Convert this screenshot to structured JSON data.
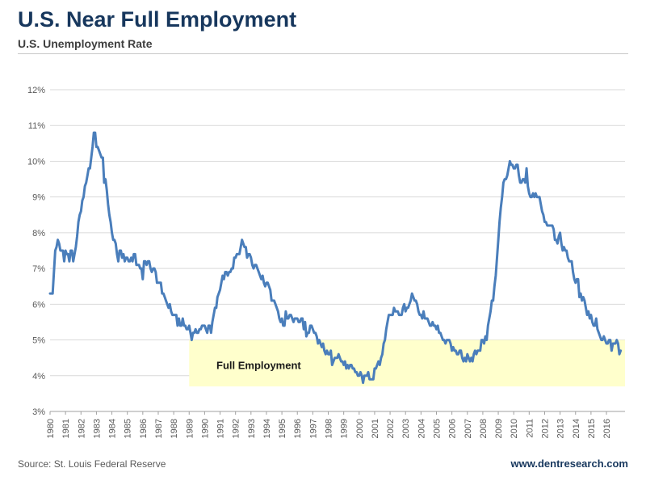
{
  "page": {
    "title": "U.S. Near Full Employment",
    "subtitle": "U.S. Unemployment Rate",
    "source": "Source: St. Louis Federal Reserve",
    "website": "www.dentresearch.com"
  },
  "colors": {
    "title": "#17375d",
    "line": "#4a7ebb",
    "band_fill": "#ffffcc",
    "band_label": "#1a1a1a",
    "grid": "#d9d9d9",
    "axis": "#a0a0a0",
    "axis_text": "#595959"
  },
  "chart_data": {
    "type": "line",
    "title": "U.S. Unemployment Rate",
    "xlabel": "",
    "ylabel": "",
    "ylim": [
      3,
      12
    ],
    "xlim": [
      1980,
      2017.2
    ],
    "grid": true,
    "legend": false,
    "y_ticks": [
      3,
      4,
      5,
      6,
      7,
      8,
      9,
      10,
      11,
      12
    ],
    "y_tick_suffix": "%",
    "x_ticks": [
      1980,
      1981,
      1982,
      1983,
      1984,
      1985,
      1986,
      1987,
      1988,
      1989,
      1990,
      1991,
      1992,
      1993,
      1994,
      1995,
      1996,
      1997,
      1998,
      1999,
      2000,
      2001,
      2002,
      2003,
      2004,
      2005,
      2006,
      2007,
      2008,
      2009,
      2010,
      2011,
      2012,
      2013,
      2014,
      2015,
      2016
    ],
    "series": [
      {
        "name": "U.S. Unemployment Rate",
        "color": "#4a7ebb",
        "frequency": "monthly",
        "x_start": 1980,
        "values": [
          6.3,
          6.3,
          6.3,
          6.9,
          7.5,
          7.6,
          7.8,
          7.7,
          7.5,
          7.5,
          7.5,
          7.2,
          7.5,
          7.4,
          7.4,
          7.2,
          7.5,
          7.5,
          7.2,
          7.4,
          7.6,
          7.9,
          8.3,
          8.5,
          8.6,
          8.9,
          9.0,
          9.3,
          9.4,
          9.6,
          9.8,
          9.8,
          10.1,
          10.4,
          10.8,
          10.8,
          10.4,
          10.4,
          10.3,
          10.2,
          10.1,
          10.1,
          9.4,
          9.5,
          9.2,
          8.8,
          8.5,
          8.3,
          8.0,
          7.8,
          7.8,
          7.7,
          7.4,
          7.2,
          7.5,
          7.5,
          7.3,
          7.4,
          7.2,
          7.3,
          7.3,
          7.2,
          7.2,
          7.3,
          7.2,
          7.4,
          7.4,
          7.1,
          7.1,
          7.1,
          7.0,
          7.0,
          6.7,
          7.2,
          7.2,
          7.1,
          7.2,
          7.2,
          7.0,
          6.9,
          7.0,
          7.0,
          6.9,
          6.6,
          6.6,
          6.6,
          6.6,
          6.3,
          6.3,
          6.2,
          6.1,
          6.0,
          5.9,
          6.0,
          5.8,
          5.7,
          5.7,
          5.7,
          5.7,
          5.4,
          5.6,
          5.4,
          5.4,
          5.6,
          5.4,
          5.4,
          5.3,
          5.3,
          5.4,
          5.2,
          5.0,
          5.2,
          5.2,
          5.3,
          5.2,
          5.2,
          5.3,
          5.3,
          5.4,
          5.4,
          5.4,
          5.3,
          5.2,
          5.4,
          5.4,
          5.2,
          5.5,
          5.7,
          5.9,
          5.9,
          6.2,
          6.3,
          6.4,
          6.6,
          6.8,
          6.7,
          6.9,
          6.9,
          6.8,
          6.9,
          6.9,
          7.0,
          7.0,
          7.3,
          7.3,
          7.4,
          7.4,
          7.4,
          7.6,
          7.8,
          7.7,
          7.6,
          7.6,
          7.3,
          7.4,
          7.4,
          7.3,
          7.1,
          7.0,
          7.1,
          7.1,
          7.0,
          6.9,
          6.8,
          6.7,
          6.8,
          6.6,
          6.5,
          6.6,
          6.6,
          6.5,
          6.4,
          6.1,
          6.1,
          6.1,
          6.0,
          5.9,
          5.8,
          5.6,
          5.5,
          5.6,
          5.4,
          5.4,
          5.8,
          5.6,
          5.6,
          5.7,
          5.7,
          5.6,
          5.5,
          5.6,
          5.6,
          5.6,
          5.5,
          5.5,
          5.6,
          5.6,
          5.3,
          5.5,
          5.1,
          5.2,
          5.2,
          5.4,
          5.4,
          5.3,
          5.2,
          5.2,
          5.1,
          4.9,
          5.0,
          4.9,
          4.8,
          4.9,
          4.7,
          4.6,
          4.7,
          4.6,
          4.6,
          4.7,
          4.3,
          4.4,
          4.5,
          4.5,
          4.5,
          4.6,
          4.5,
          4.4,
          4.4,
          4.3,
          4.4,
          4.2,
          4.3,
          4.2,
          4.3,
          4.3,
          4.2,
          4.2,
          4.1,
          4.1,
          4.0,
          4.0,
          4.1,
          4.0,
          3.8,
          4.0,
          4.0,
          4.0,
          4.1,
          3.9,
          3.9,
          3.9,
          3.9,
          4.2,
          4.2,
          4.3,
          4.4,
          4.3,
          4.5,
          4.6,
          4.9,
          5.0,
          5.3,
          5.5,
          5.7,
          5.7,
          5.7,
          5.7,
          5.9,
          5.8,
          5.8,
          5.8,
          5.7,
          5.7,
          5.7,
          5.9,
          6.0,
          5.8,
          5.9,
          5.9,
          6.0,
          6.1,
          6.3,
          6.2,
          6.1,
          6.1,
          6.0,
          5.8,
          5.7,
          5.7,
          5.6,
          5.8,
          5.6,
          5.6,
          5.6,
          5.5,
          5.4,
          5.4,
          5.5,
          5.4,
          5.4,
          5.3,
          5.4,
          5.2,
          5.2,
          5.1,
          5.0,
          5.0,
          4.9,
          5.0,
          5.0,
          5.0,
          4.9,
          4.7,
          4.8,
          4.7,
          4.7,
          4.6,
          4.6,
          4.7,
          4.7,
          4.5,
          4.4,
          4.5,
          4.4,
          4.6,
          4.5,
          4.4,
          4.5,
          4.4,
          4.6,
          4.7,
          4.6,
          4.7,
          4.7,
          4.7,
          5.0,
          5.0,
          4.9,
          5.1,
          5.0,
          5.4,
          5.6,
          5.8,
          6.1,
          6.1,
          6.5,
          6.8,
          7.3,
          7.8,
          8.3,
          8.7,
          9.0,
          9.4,
          9.5,
          9.5,
          9.6,
          9.8,
          10.0,
          9.9,
          9.9,
          9.8,
          9.8,
          9.9,
          9.9,
          9.6,
          9.4,
          9.4,
          9.5,
          9.5,
          9.4,
          9.8,
          9.3,
          9.1,
          9.0,
          9.0,
          9.1,
          9.0,
          9.1,
          9.0,
          9.0,
          9.0,
          8.8,
          8.6,
          8.5,
          8.3,
          8.3,
          8.2,
          8.2,
          8.2,
          8.2,
          8.2,
          8.1,
          7.8,
          7.8,
          7.7,
          7.9,
          8.0,
          7.7,
          7.5,
          7.6,
          7.5,
          7.5,
          7.3,
          7.2,
          7.2,
          7.2,
          6.9,
          6.7,
          6.6,
          6.7,
          6.7,
          6.2,
          6.3,
          6.1,
          6.2,
          6.1,
          5.9,
          5.7,
          5.8,
          5.6,
          5.7,
          5.5,
          5.4,
          5.4,
          5.6,
          5.3,
          5.2,
          5.1,
          5.0,
          5.0,
          5.1,
          5.0,
          4.9,
          4.9,
          5.0,
          5.0,
          4.7,
          4.9,
          4.9,
          4.9,
          5.0,
          4.9,
          4.6,
          4.7
        ]
      }
    ],
    "annotations": [
      {
        "type": "band",
        "label": "Full Employment",
        "x_range": [
          1989,
          2017.2
        ],
        "y_range": [
          3.7,
          5.0
        ],
        "fill": "#ffffcc",
        "label_x": 1993.5,
        "label_y": 4.3
      }
    ]
  }
}
